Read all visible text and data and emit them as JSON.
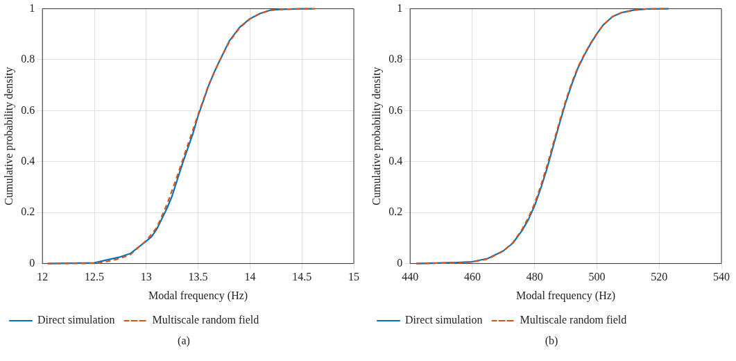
{
  "chart_data": [
    {
      "type": "line",
      "xlabel": "Modal frequency (Hz)",
      "ylabel": "Cumulative probability density",
      "xlim": [
        12,
        15
      ],
      "xticks": [
        12,
        12.5,
        13,
        13.5,
        14,
        14.5,
        15
      ],
      "ylim": [
        0,
        1
      ],
      "yticks": [
        0,
        0.2,
        0.4,
        0.6,
        0.8,
        1
      ],
      "grid": true,
      "legend": "bottom",
      "marker": "none",
      "annotations": [
        "(a)"
      ],
      "series": [
        {
          "name": "Direct simulation",
          "color": "#0072bd",
          "line_style": "solid",
          "x": [
            12.05,
            12.5,
            12.6,
            12.75,
            12.85,
            13.0,
            13.05,
            13.1,
            13.2,
            13.25,
            13.3,
            13.35,
            13.4,
            13.45,
            13.5,
            13.55,
            13.6,
            13.65,
            13.7,
            13.8,
            13.9,
            14.0,
            14.1,
            14.2,
            14.3,
            14.5,
            14.6
          ],
          "values": [
            0,
            0.003,
            0.012,
            0.026,
            0.04,
            0.088,
            0.105,
            0.134,
            0.217,
            0.266,
            0.33,
            0.393,
            0.452,
            0.51,
            0.58,
            0.638,
            0.697,
            0.746,
            0.79,
            0.873,
            0.927,
            0.961,
            0.982,
            0.995,
            0.998,
            1,
            1
          ]
        },
        {
          "name": "Multiscale random field",
          "color": "#d95319",
          "line_style": "dashed",
          "x": [
            12.05,
            12.5,
            12.6,
            12.75,
            12.85,
            13.0,
            13.1,
            13.2,
            13.3,
            13.4,
            13.5,
            13.6,
            13.7,
            13.8,
            13.9,
            14.0,
            14.1,
            14.2,
            14.3,
            14.63
          ],
          "values": [
            0,
            0.001,
            0.006,
            0.02,
            0.036,
            0.09,
            0.14,
            0.232,
            0.345,
            0.465,
            0.585,
            0.7,
            0.79,
            0.87,
            0.925,
            0.96,
            0.982,
            0.994,
            0.998,
            1
          ]
        }
      ]
    },
    {
      "type": "line",
      "xlabel": "Modal frequency (Hz)",
      "ylabel": "Cumulative probability density",
      "xlim": [
        440,
        540
      ],
      "xticks": [
        440,
        460,
        480,
        500,
        520,
        540
      ],
      "ylim": [
        0,
        1
      ],
      "yticks": [
        0,
        0.2,
        0.4,
        0.6,
        0.8,
        1
      ],
      "grid": true,
      "legend": "bottom",
      "marker": "none",
      "annotations": [
        "(b)"
      ],
      "series": [
        {
          "name": "Direct simulation",
          "color": "#0072bd",
          "line_style": "solid",
          "x": [
            442,
            455,
            460,
            465,
            470,
            473,
            476,
            478,
            480,
            482,
            484,
            486,
            488,
            490,
            492,
            494,
            496,
            498,
            500,
            502,
            505,
            508,
            512,
            516,
            523
          ],
          "values": [
            0,
            0.004,
            0.007,
            0.02,
            0.05,
            0.08,
            0.13,
            0.173,
            0.227,
            0.296,
            0.374,
            0.462,
            0.55,
            0.633,
            0.706,
            0.77,
            0.819,
            0.863,
            0.902,
            0.936,
            0.969,
            0.985,
            0.995,
            0.999,
            1
          ]
        },
        {
          "name": "Multiscale random field",
          "color": "#d95319",
          "line_style": "dashed",
          "x": [
            442,
            455,
            460,
            465,
            470,
            473,
            476,
            478,
            480,
            482,
            484,
            486,
            488,
            490,
            492,
            494,
            496,
            498,
            500,
            502,
            505,
            508,
            512,
            516,
            523
          ],
          "values": [
            0,
            0.003,
            0.006,
            0.018,
            0.05,
            0.082,
            0.135,
            0.18,
            0.236,
            0.306,
            0.385,
            0.472,
            0.558,
            0.64,
            0.712,
            0.774,
            0.822,
            0.865,
            0.903,
            0.936,
            0.969,
            0.985,
            0.995,
            0.999,
            1
          ]
        }
      ]
    }
  ]
}
